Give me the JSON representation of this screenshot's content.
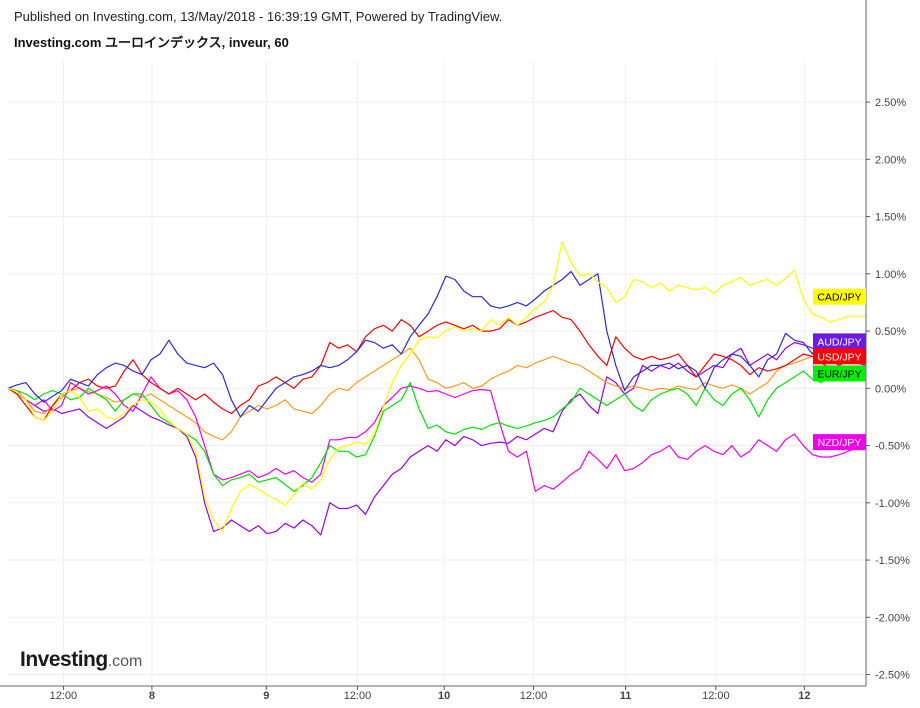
{
  "header": {
    "published": "Published on Investing.com, 13/May/2018 - 16:39:19 GMT, Powered by TradingView.",
    "title": "Investing.com ユーロインデックス, inveur, 60"
  },
  "logo": {
    "word": "Investing",
    "suffix": ".com"
  },
  "chart_data": {
    "type": "line",
    "title": "Investing.com ユーロインデックス, inveur, 60",
    "y_unit": "%",
    "ylim": [
      -2.6,
      2.85
    ],
    "xlim": [
      0,
      96
    ],
    "y_ticks": [
      2.5,
      2.0,
      1.5,
      1.0,
      0.5,
      0.0,
      -0.5,
      -1.0,
      -1.5,
      -2.0,
      -2.5
    ],
    "y_tick_labels": [
      "2.50%",
      "2.00%",
      "1.50%",
      "1.00%",
      "0.50%",
      "0.00%",
      "-0.50%",
      "-1.00%",
      "-1.50%",
      "-2.00%",
      "-2.50%"
    ],
    "x_tick_positions": [
      6.2,
      16.1,
      28.9,
      39.1,
      48.8,
      58.8,
      69.1,
      79.2,
      89.1
    ],
    "x_tick_labels": [
      "12:00",
      "8",
      "9",
      "12:00",
      "10",
      "12:00",
      "11",
      "12:00",
      "12"
    ],
    "x_tick_bold": [
      false,
      true,
      true,
      false,
      true,
      false,
      true,
      false,
      true
    ],
    "grid": true,
    "series": [
      {
        "name": "CAD/JPY",
        "color": "#ffff00",
        "label_color": "#ffff00",
        "label_text_color": "#000000",
        "values": [
          0,
          -0.03,
          -0.1,
          -0.25,
          -0.28,
          -0.2,
          -0.05,
          -0.02,
          -0.08,
          -0.2,
          -0.18,
          -0.25,
          -0.27,
          -0.22,
          -0.14,
          -0.1,
          -0.12,
          -0.18,
          -0.29,
          -0.35,
          -0.4,
          -0.55,
          -0.95,
          -1.15,
          -1.25,
          -1.05,
          -0.9,
          -0.84,
          -0.88,
          -0.93,
          -0.97,
          -1.02,
          -0.93,
          -0.83,
          -0.88,
          -0.8,
          -0.62,
          -0.52,
          -0.5,
          -0.47,
          -0.49,
          -0.4,
          -0.16,
          0.05,
          0.2,
          0.3,
          0.42,
          0.45,
          0.44,
          0.5,
          0.54,
          0.5,
          0.52,
          0.5,
          0.6,
          0.55,
          0.62,
          0.55,
          0.62,
          0.7,
          0.75,
          0.9,
          1.28,
          1.1,
          0.98,
          1.0,
          0.93,
          0.88,
          0.75,
          0.8,
          0.95,
          0.93,
          0.88,
          0.92,
          0.85,
          0.9,
          0.88,
          0.86,
          0.88,
          0.83,
          0.9,
          0.93,
          0.97,
          0.9,
          0.93,
          0.95,
          0.9,
          0.96,
          1.03,
          0.78,
          0.65,
          0.62,
          0.58,
          0.6,
          0.63,
          0.63,
          0.63
        ]
      },
      {
        "name": "AUD/JPY",
        "color": "#2b2bd8",
        "label_color": "#6a1ce0",
        "label_text_color": "#ffffff",
        "values": [
          0,
          0.03,
          0.05,
          -0.05,
          -0.12,
          -0.07,
          -0.02,
          0.08,
          0.05,
          0.02,
          0.12,
          0.18,
          0.22,
          0.2,
          0.15,
          0.12,
          0.25,
          0.3,
          0.42,
          0.3,
          0.22,
          0.2,
          0.18,
          0.22,
          0.12,
          -0.1,
          -0.25,
          -0.15,
          -0.2,
          -0.1,
          0.0,
          0.05,
          0.1,
          0.12,
          0.15,
          0.2,
          0.18,
          0.2,
          0.25,
          0.32,
          0.42,
          0.4,
          0.35,
          0.38,
          0.3,
          0.45,
          0.55,
          0.65,
          0.8,
          0.98,
          0.95,
          0.85,
          0.8,
          0.8,
          0.72,
          0.7,
          0.72,
          0.75,
          0.72,
          0.78,
          0.85,
          0.9,
          0.95,
          1.02,
          0.9,
          0.95,
          1.0,
          0.5,
          0.2,
          -0.02,
          0.1,
          0.15,
          0.2,
          0.2,
          0.22,
          0.17,
          0.2,
          0.15,
          0.0,
          0.18,
          0.25,
          0.3,
          0.28,
          0.2,
          0.1,
          0.25,
          0.3,
          0.48,
          0.42,
          0.4,
          0.3,
          0.44,
          0.35,
          0.27,
          0.33,
          0.28,
          0.3
        ]
      },
      {
        "name": "USD/JPY",
        "color": "#ff0000",
        "label_color": "#ff0000",
        "label_text_color": "#ffffff",
        "values": [
          0,
          -0.05,
          -0.15,
          -0.25,
          -0.28,
          -0.15,
          -0.05,
          -0.02,
          0.05,
          0.08,
          0.02,
          0.0,
          0.02,
          0.15,
          0.25,
          0.12,
          0.05,
          0.0,
          -0.05,
          0.0,
          -0.05,
          -0.1,
          -0.05,
          -0.12,
          -0.18,
          -0.22,
          -0.15,
          -0.1,
          0.02,
          0.05,
          0.1,
          0.05,
          0.0,
          0.08,
          0.1,
          0.2,
          0.4,
          0.35,
          0.38,
          0.32,
          0.45,
          0.52,
          0.55,
          0.5,
          0.6,
          0.55,
          0.45,
          0.5,
          0.55,
          0.58,
          0.55,
          0.52,
          0.55,
          0.5,
          0.5,
          0.52,
          0.6,
          0.55,
          0.58,
          0.62,
          0.65,
          0.68,
          0.62,
          0.6,
          0.5,
          0.38,
          0.28,
          0.2,
          0.45,
          0.35,
          0.28,
          0.25,
          0.28,
          0.25,
          0.27,
          0.3,
          0.2,
          0.1,
          0.2,
          0.3,
          0.28,
          0.25,
          0.2,
          0.12,
          0.18,
          0.15,
          0.17,
          0.2,
          0.25,
          0.3,
          0.28,
          0.22,
          0.18,
          0.2,
          0.25,
          0.25,
          0.25
        ]
      },
      {
        "name": "EUR/JPY",
        "color": "#00e000",
        "label_color": "#00ee00",
        "label_text_color": "#000000",
        "values": [
          0,
          -0.02,
          -0.05,
          -0.1,
          -0.05,
          -0.02,
          -0.05,
          -0.1,
          -0.08,
          0.0,
          -0.05,
          -0.1,
          -0.2,
          -0.1,
          -0.05,
          -0.05,
          -0.15,
          -0.25,
          -0.3,
          -0.35,
          -0.4,
          -0.45,
          -0.55,
          -0.75,
          -0.85,
          -0.8,
          -0.78,
          -0.75,
          -0.82,
          -0.8,
          -0.78,
          -0.84,
          -0.9,
          -0.85,
          -0.78,
          -0.65,
          -0.5,
          -0.55,
          -0.55,
          -0.6,
          -0.58,
          -0.42,
          -0.2,
          -0.15,
          -0.1,
          0.05,
          -0.18,
          -0.35,
          -0.32,
          -0.38,
          -0.4,
          -0.36,
          -0.34,
          -0.36,
          -0.32,
          -0.3,
          -0.33,
          -0.35,
          -0.33,
          -0.3,
          -0.28,
          -0.25,
          -0.18,
          -0.12,
          0.0,
          -0.05,
          -0.1,
          -0.15,
          -0.1,
          -0.05,
          -0.15,
          -0.2,
          -0.1,
          -0.05,
          -0.02,
          0.0,
          -0.05,
          -0.15,
          0.0,
          -0.1,
          -0.15,
          -0.05,
          0.0,
          -0.1,
          -0.25,
          -0.1,
          0.0,
          0.05,
          0.1,
          0.15,
          0.08,
          0.05,
          0.1,
          0.12,
          0.15,
          0.13,
          0.13
        ]
      },
      {
        "name": "NZD/JPY",
        "color": "#ee00ee",
        "label_color": "#ee00ee",
        "label_text_color": "#ffffff",
        "values": [
          0,
          -0.02,
          -0.1,
          -0.15,
          -0.1,
          -0.2,
          -0.15,
          0.05,
          0.0,
          -0.05,
          -0.02,
          0.02,
          -0.05,
          -0.15,
          -0.2,
          -0.05,
          0.1,
          0.0,
          -0.05,
          -0.02,
          -0.1,
          -0.25,
          -0.5,
          -0.75,
          -0.8,
          -0.78,
          -0.75,
          -0.72,
          -0.78,
          -0.75,
          -0.7,
          -0.75,
          -0.72,
          -0.78,
          -0.82,
          -0.75,
          -0.45,
          -0.45,
          -0.43,
          -0.43,
          -0.38,
          -0.3,
          -0.15,
          -0.08,
          0.0,
          0.02,
          0.0,
          -0.03,
          -0.02,
          -0.05,
          -0.08,
          -0.05,
          -0.02,
          -0.01,
          -0.02,
          -0.3,
          -0.55,
          -0.6,
          -0.55,
          -0.9,
          -0.85,
          -0.88,
          -0.82,
          -0.75,
          -0.7,
          -0.55,
          -0.62,
          -0.7,
          -0.58,
          -0.72,
          -0.7,
          -0.65,
          -0.58,
          -0.55,
          -0.5,
          -0.6,
          -0.62,
          -0.55,
          -0.5,
          -0.55,
          -0.58,
          -0.5,
          -0.6,
          -0.55,
          -0.45,
          -0.5,
          -0.55,
          -0.45,
          -0.4,
          -0.5,
          -0.58,
          -0.6,
          -0.6,
          -0.58,
          -0.55,
          -0.52,
          -0.5
        ]
      },
      {
        "name": "Orange",
        "color": "#ff9a1a",
        "label_color": "#ff9a1a",
        "label_text_color": "#ffffff",
        "values": [
          0,
          -0.05,
          -0.1,
          -0.2,
          -0.22,
          -0.15,
          -0.08,
          -0.02,
          0.0,
          -0.03,
          -0.05,
          -0.08,
          -0.12,
          -0.1,
          -0.05,
          -0.08,
          -0.05,
          -0.1,
          -0.15,
          -0.2,
          -0.25,
          -0.3,
          -0.38,
          -0.42,
          -0.45,
          -0.38,
          -0.25,
          -0.2,
          -0.15,
          -0.18,
          -0.15,
          -0.1,
          -0.18,
          -0.2,
          -0.22,
          -0.15,
          -0.05,
          0.0,
          -0.02,
          0.05,
          0.1,
          0.15,
          0.2,
          0.25,
          0.3,
          0.35,
          0.25,
          0.08,
          0.05,
          0.0,
          0.02,
          0.05,
          0.0,
          0.02,
          0.08,
          0.12,
          0.15,
          0.2,
          0.18,
          0.22,
          0.25,
          0.28,
          0.25,
          0.22,
          0.2,
          0.15,
          0.1,
          0.05,
          0.02,
          0.0,
          0.02,
          0.0,
          -0.02,
          0.0,
          -0.01,
          0.02,
          0.0,
          -0.01,
          0.05,
          0.02,
          0.0,
          0.03,
          0.0,
          -0.05,
          0.0,
          0.05,
          0.15,
          0.2,
          0.22,
          0.25,
          0.28,
          0.23,
          0.22,
          0.25,
          0.25,
          0.25,
          0.25
        ]
      },
      {
        "name": "Purple",
        "color": "#9900dd",
        "label_color": "#9900dd",
        "label_text_color": "#ffffff",
        "values": [
          0,
          -0.05,
          -0.1,
          -0.15,
          -0.2,
          -0.18,
          -0.22,
          -0.2,
          -0.18,
          -0.25,
          -0.3,
          -0.35,
          -0.3,
          -0.25,
          -0.15,
          -0.2,
          -0.25,
          -0.28,
          -0.32,
          -0.35,
          -0.42,
          -0.6,
          -1.0,
          -1.25,
          -1.22,
          -1.15,
          -1.2,
          -1.25,
          -1.2,
          -1.27,
          -1.25,
          -1.18,
          -1.22,
          -1.15,
          -1.2,
          -1.28,
          -1.0,
          -1.05,
          -1.05,
          -1.02,
          -1.1,
          -0.95,
          -0.85,
          -0.75,
          -0.7,
          -0.6,
          -0.55,
          -0.5,
          -0.55,
          -0.45,
          -0.5,
          -0.42,
          -0.45,
          -0.5,
          -0.48,
          -0.47,
          -0.48,
          -0.42,
          -0.45,
          -0.4,
          -0.35,
          -0.38,
          -0.2,
          -0.1,
          -0.05,
          -0.15,
          -0.22,
          0.1,
          0.05,
          -0.05,
          0.0,
          0.2,
          0.15,
          0.2,
          0.17,
          0.22,
          0.15,
          0.1,
          0.15,
          0.2,
          0.18,
          0.3,
          0.35,
          0.2,
          0.25,
          0.3,
          0.25,
          0.35,
          0.4,
          0.38,
          0.35,
          0.3,
          0.25,
          0.2,
          0.25,
          0.22,
          0.2
        ]
      }
    ],
    "legend_labels": [
      {
        "series": "CAD/JPY",
        "text": "CAD/JPY",
        "value": 0.8
      },
      {
        "series": "AUD/JPY",
        "text": "AUD/JPY",
        "value": 0.41
      },
      {
        "series": "USD/JPY",
        "text": "USD/JPY",
        "value": 0.28
      },
      {
        "series": "EUR/JPY",
        "text": "EUR/JPY",
        "value": 0.13
      },
      {
        "series": "NZD/JPY",
        "text": "NZD/JPY",
        "value": -0.47
      }
    ]
  }
}
